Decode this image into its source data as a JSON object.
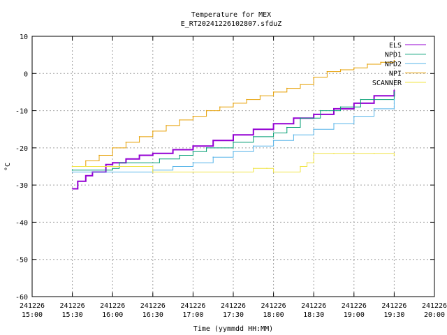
{
  "chart_data": {
    "type": "line",
    "title": "Temperature for MEX",
    "subtitle": "E_RT20241226102807.sfduZ",
    "xlabel": "Time (yymmdd HH:MM)",
    "ylabel": "°C",
    "grid": true,
    "legend_position": "top-right",
    "ylim": [
      -60,
      10
    ],
    "y_ticks": [
      10,
      0,
      -10,
      -20,
      -30,
      -40,
      -50,
      -60
    ],
    "xlim": [
      "2024-12-26 15:00",
      "2024-12-26 20:00"
    ],
    "x_ticks": [
      {
        "date": "241226",
        "time": "15:00"
      },
      {
        "date": "241226",
        "time": "15:30"
      },
      {
        "date": "241226",
        "time": "16:00"
      },
      {
        "date": "241226",
        "time": "16:30"
      },
      {
        "date": "241226",
        "time": "17:00"
      },
      {
        "date": "241226",
        "time": "17:30"
      },
      {
        "date": "241226",
        "time": "18:00"
      },
      {
        "date": "241226",
        "time": "18:30"
      },
      {
        "date": "241226",
        "time": "19:00"
      },
      {
        "date": "241226",
        "time": "19:30"
      },
      {
        "date": "241226",
        "time": "20:00"
      }
    ],
    "series": [
      {
        "name": "ELS",
        "color": "#9400d3",
        "x": [
          "15:30",
          "15:34",
          "15:40",
          "15:45",
          "15:55",
          "16:00",
          "16:10",
          "16:20",
          "16:30",
          "16:45",
          "17:00",
          "17:15",
          "17:30",
          "17:45",
          "18:00",
          "18:15",
          "18:30",
          "18:45",
          "19:00",
          "19:15",
          "19:30"
        ],
        "y": [
          -31.0,
          -29.0,
          -27.5,
          -26.5,
          -24.5,
          -24.0,
          -23.0,
          -22.0,
          -21.5,
          -20.5,
          -19.5,
          -18.0,
          -16.5,
          -15.0,
          -13.5,
          -12.0,
          -11.0,
          -9.5,
          -8.0,
          -6.0,
          -4.5
        ]
      },
      {
        "name": "NPD1",
        "color": "#009e73",
        "x": [
          "15:30",
          "16:00",
          "16:05",
          "16:35",
          "16:50",
          "17:00",
          "17:10",
          "17:30",
          "17:45",
          "18:00",
          "18:10",
          "18:20",
          "18:35",
          "18:50",
          "19:05",
          "19:30"
        ],
        "y": [
          -26.0,
          -25.5,
          -24.0,
          -23.0,
          -22.0,
          -21.0,
          -20.0,
          -18.5,
          -17.0,
          -16.0,
          -14.5,
          -12.0,
          -10.0,
          -9.0,
          -7.0,
          -5.0
        ]
      },
      {
        "name": "NPD2",
        "color": "#56b4e9",
        "x": [
          "15:30",
          "16:30",
          "16:45",
          "17:00",
          "17:15",
          "17:30",
          "17:45",
          "18:00",
          "18:15",
          "18:30",
          "18:45",
          "19:00",
          "19:15",
          "19:30"
        ],
        "y": [
          -26.5,
          -26.0,
          -25.0,
          -24.0,
          -22.5,
          -21.0,
          -19.5,
          -18.0,
          -16.5,
          -15.0,
          -13.5,
          -11.5,
          -9.5,
          -7.0
        ]
      },
      {
        "name": "NPI",
        "color": "#e69f00",
        "x": [
          "15:30",
          "15:40",
          "15:50",
          "16:00",
          "16:10",
          "16:20",
          "16:30",
          "16:40",
          "16:50",
          "17:00",
          "17:10",
          "17:20",
          "17:30",
          "17:40",
          "17:50",
          "18:00",
          "18:10",
          "18:20",
          "18:30",
          "18:40",
          "18:50",
          "19:00",
          "19:10",
          "19:20",
          "19:30"
        ],
        "y": [
          -25.0,
          -23.5,
          -22.0,
          -20.0,
          -18.5,
          -17.0,
          -15.5,
          -14.0,
          -12.5,
          -11.5,
          -10.0,
          -9.0,
          -8.0,
          -7.0,
          -6.0,
          -5.0,
          -4.0,
          -3.0,
          -1.0,
          0.5,
          1.0,
          1.5,
          2.5,
          3.0,
          3.5
        ]
      },
      {
        "name": "SCANNER",
        "color": "#f0e442",
        "x": [
          "15:30",
          "16:30",
          "17:00",
          "17:30",
          "17:45",
          "17:55",
          "18:00",
          "18:20",
          "18:25",
          "18:30",
          "18:45",
          "19:00",
          "19:15",
          "19:30"
        ],
        "y": [
          -25.0,
          -26.5,
          -26.5,
          -26.5,
          -25.5,
          -25.5,
          -26.5,
          -25.0,
          -24.0,
          -21.5,
          -21.5,
          -21.5,
          -21.5,
          -22.0
        ]
      }
    ]
  }
}
